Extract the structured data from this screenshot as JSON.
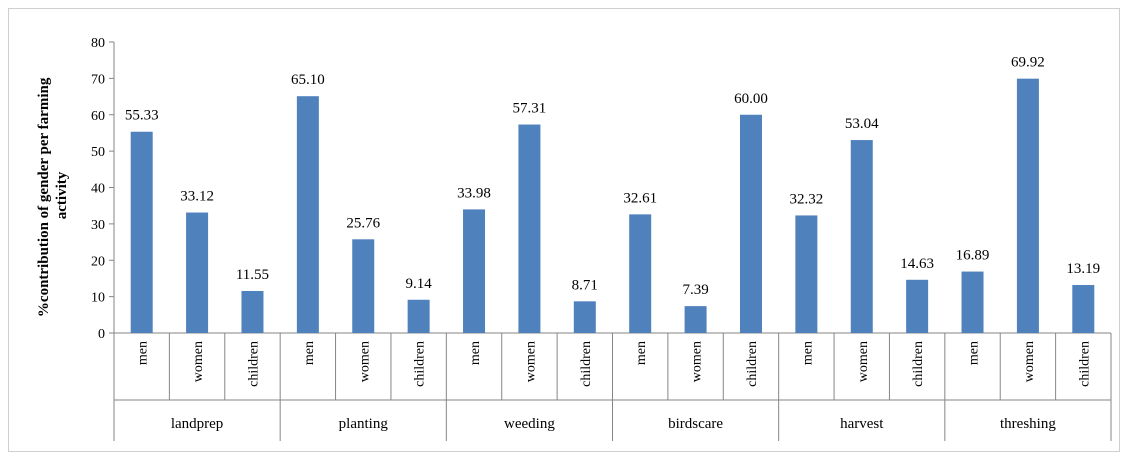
{
  "chart_data": {
    "type": "bar",
    "ylabel": "%contribution of gender per farming activity",
    "ylim": [
      0,
      80
    ],
    "ytick_step": 10,
    "yticks": [
      "0",
      "10",
      "20",
      "30",
      "40",
      "50",
      "60",
      "70",
      "80"
    ],
    "bar_color": "#4F81BD",
    "grid": false,
    "legend": "none",
    "groups": [
      {
        "name": "landprep",
        "categories": [
          "men",
          "women",
          "children"
        ],
        "values": [
          55.33,
          33.12,
          11.55
        ],
        "labels": [
          "55.33",
          "33.12",
          "11.55"
        ]
      },
      {
        "name": "planting",
        "categories": [
          "men",
          "women",
          "children"
        ],
        "values": [
          65.1,
          25.76,
          9.14
        ],
        "labels": [
          "65.10",
          "25.76",
          "9.14"
        ]
      },
      {
        "name": "weeding",
        "categories": [
          "men",
          "women",
          "children"
        ],
        "values": [
          33.98,
          57.31,
          8.71
        ],
        "labels": [
          "33.98",
          "57.31",
          "8.71"
        ]
      },
      {
        "name": "birdscare",
        "categories": [
          "men",
          "women",
          "children"
        ],
        "values": [
          32.61,
          7.39,
          60.0
        ],
        "labels": [
          "32.61",
          "7.39",
          "60.00"
        ]
      },
      {
        "name": "harvest",
        "categories": [
          "men",
          "women",
          "children"
        ],
        "values": [
          32.32,
          53.04,
          14.63
        ],
        "labels": [
          "32.32",
          "53.04",
          "14.63"
        ]
      },
      {
        "name": "threshing",
        "categories": [
          "men",
          "women",
          "children"
        ],
        "values": [
          16.89,
          69.92,
          13.19
        ],
        "labels": [
          "16.89",
          "69.92",
          "13.19"
        ]
      }
    ]
  }
}
